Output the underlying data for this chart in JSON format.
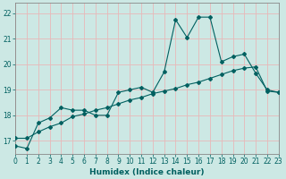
{
  "xlabel": "Humidex (Indice chaleur)",
  "bg_color": "#cce8e4",
  "grid_color": "#e8b8b8",
  "line_color": "#006060",
  "x_values": [
    0,
    1,
    2,
    3,
    4,
    5,
    6,
    7,
    8,
    9,
    10,
    11,
    12,
    13,
    14,
    15,
    16,
    17,
    18,
    19,
    20,
    21,
    22,
    23
  ],
  "y_main": [
    16.8,
    16.7,
    17.7,
    17.9,
    18.3,
    18.2,
    18.2,
    18.0,
    18.0,
    18.9,
    19.0,
    19.1,
    18.9,
    19.7,
    21.75,
    21.05,
    21.85,
    21.85,
    20.1,
    20.3,
    20.4,
    19.65,
    19.0,
    18.9
  ],
  "y_trend": [
    17.1,
    17.1,
    17.35,
    17.55,
    17.7,
    17.95,
    18.05,
    18.2,
    18.3,
    18.45,
    18.6,
    18.7,
    18.85,
    18.95,
    19.05,
    19.2,
    19.3,
    19.45,
    19.6,
    19.75,
    19.85,
    19.9,
    18.95,
    18.9
  ],
  "xlim": [
    0,
    23
  ],
  "ylim": [
    16.5,
    22.4
  ],
  "yticks": [
    17,
    18,
    19,
    20,
    21,
    22
  ],
  "xticks": [
    0,
    1,
    2,
    3,
    4,
    5,
    6,
    7,
    8,
    9,
    10,
    11,
    12,
    13,
    14,
    15,
    16,
    17,
    18,
    19,
    20,
    21,
    22,
    23
  ],
  "tick_fontsize": 5.5,
  "xlabel_fontsize": 6.5,
  "xlabel_color": "#006060",
  "marker_size": 2.0,
  "line_width": 0.8
}
